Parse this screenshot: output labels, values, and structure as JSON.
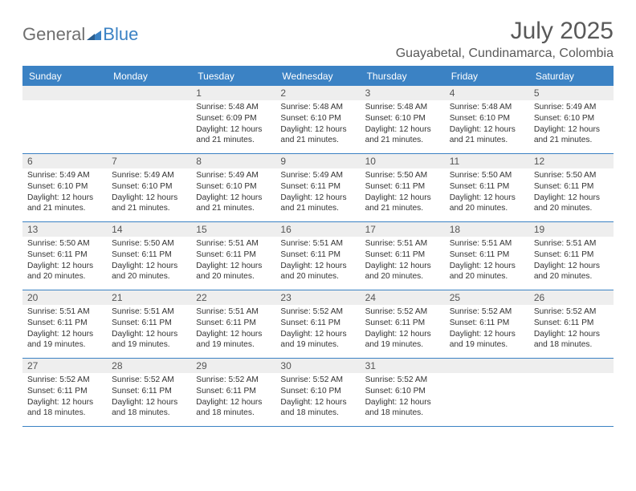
{
  "logo": {
    "part1": "General",
    "part2": "Blue"
  },
  "title": "July 2025",
  "location": "Guayabetal, Cundinamarca, Colombia",
  "colors": {
    "accent": "#3b82c4",
    "header_bg": "#3b82c4",
    "header_text": "#ffffff",
    "daynum_bg": "#eeeeee",
    "text": "#333333",
    "title_text": "#595959",
    "logo_gray": "#6f6f6f"
  },
  "dayNames": [
    "Sunday",
    "Monday",
    "Tuesday",
    "Wednesday",
    "Thursday",
    "Friday",
    "Saturday"
  ],
  "weeks": [
    [
      {
        "n": "",
        "empty": true
      },
      {
        "n": "",
        "empty": true
      },
      {
        "n": "1",
        "sunrise": "Sunrise: 5:48 AM",
        "sunset": "Sunset: 6:09 PM",
        "day1": "Daylight: 12 hours",
        "day2": "and 21 minutes."
      },
      {
        "n": "2",
        "sunrise": "Sunrise: 5:48 AM",
        "sunset": "Sunset: 6:10 PM",
        "day1": "Daylight: 12 hours",
        "day2": "and 21 minutes."
      },
      {
        "n": "3",
        "sunrise": "Sunrise: 5:48 AM",
        "sunset": "Sunset: 6:10 PM",
        "day1": "Daylight: 12 hours",
        "day2": "and 21 minutes."
      },
      {
        "n": "4",
        "sunrise": "Sunrise: 5:48 AM",
        "sunset": "Sunset: 6:10 PM",
        "day1": "Daylight: 12 hours",
        "day2": "and 21 minutes."
      },
      {
        "n": "5",
        "sunrise": "Sunrise: 5:49 AM",
        "sunset": "Sunset: 6:10 PM",
        "day1": "Daylight: 12 hours",
        "day2": "and 21 minutes."
      }
    ],
    [
      {
        "n": "6",
        "sunrise": "Sunrise: 5:49 AM",
        "sunset": "Sunset: 6:10 PM",
        "day1": "Daylight: 12 hours",
        "day2": "and 21 minutes."
      },
      {
        "n": "7",
        "sunrise": "Sunrise: 5:49 AM",
        "sunset": "Sunset: 6:10 PM",
        "day1": "Daylight: 12 hours",
        "day2": "and 21 minutes."
      },
      {
        "n": "8",
        "sunrise": "Sunrise: 5:49 AM",
        "sunset": "Sunset: 6:10 PM",
        "day1": "Daylight: 12 hours",
        "day2": "and 21 minutes."
      },
      {
        "n": "9",
        "sunrise": "Sunrise: 5:49 AM",
        "sunset": "Sunset: 6:11 PM",
        "day1": "Daylight: 12 hours",
        "day2": "and 21 minutes."
      },
      {
        "n": "10",
        "sunrise": "Sunrise: 5:50 AM",
        "sunset": "Sunset: 6:11 PM",
        "day1": "Daylight: 12 hours",
        "day2": "and 21 minutes."
      },
      {
        "n": "11",
        "sunrise": "Sunrise: 5:50 AM",
        "sunset": "Sunset: 6:11 PM",
        "day1": "Daylight: 12 hours",
        "day2": "and 20 minutes."
      },
      {
        "n": "12",
        "sunrise": "Sunrise: 5:50 AM",
        "sunset": "Sunset: 6:11 PM",
        "day1": "Daylight: 12 hours",
        "day2": "and 20 minutes."
      }
    ],
    [
      {
        "n": "13",
        "sunrise": "Sunrise: 5:50 AM",
        "sunset": "Sunset: 6:11 PM",
        "day1": "Daylight: 12 hours",
        "day2": "and 20 minutes."
      },
      {
        "n": "14",
        "sunrise": "Sunrise: 5:50 AM",
        "sunset": "Sunset: 6:11 PM",
        "day1": "Daylight: 12 hours",
        "day2": "and 20 minutes."
      },
      {
        "n": "15",
        "sunrise": "Sunrise: 5:51 AM",
        "sunset": "Sunset: 6:11 PM",
        "day1": "Daylight: 12 hours",
        "day2": "and 20 minutes."
      },
      {
        "n": "16",
        "sunrise": "Sunrise: 5:51 AM",
        "sunset": "Sunset: 6:11 PM",
        "day1": "Daylight: 12 hours",
        "day2": "and 20 minutes."
      },
      {
        "n": "17",
        "sunrise": "Sunrise: 5:51 AM",
        "sunset": "Sunset: 6:11 PM",
        "day1": "Daylight: 12 hours",
        "day2": "and 20 minutes."
      },
      {
        "n": "18",
        "sunrise": "Sunrise: 5:51 AM",
        "sunset": "Sunset: 6:11 PM",
        "day1": "Daylight: 12 hours",
        "day2": "and 20 minutes."
      },
      {
        "n": "19",
        "sunrise": "Sunrise: 5:51 AM",
        "sunset": "Sunset: 6:11 PM",
        "day1": "Daylight: 12 hours",
        "day2": "and 20 minutes."
      }
    ],
    [
      {
        "n": "20",
        "sunrise": "Sunrise: 5:51 AM",
        "sunset": "Sunset: 6:11 PM",
        "day1": "Daylight: 12 hours",
        "day2": "and 19 minutes."
      },
      {
        "n": "21",
        "sunrise": "Sunrise: 5:51 AM",
        "sunset": "Sunset: 6:11 PM",
        "day1": "Daylight: 12 hours",
        "day2": "and 19 minutes."
      },
      {
        "n": "22",
        "sunrise": "Sunrise: 5:51 AM",
        "sunset": "Sunset: 6:11 PM",
        "day1": "Daylight: 12 hours",
        "day2": "and 19 minutes."
      },
      {
        "n": "23",
        "sunrise": "Sunrise: 5:52 AM",
        "sunset": "Sunset: 6:11 PM",
        "day1": "Daylight: 12 hours",
        "day2": "and 19 minutes."
      },
      {
        "n": "24",
        "sunrise": "Sunrise: 5:52 AM",
        "sunset": "Sunset: 6:11 PM",
        "day1": "Daylight: 12 hours",
        "day2": "and 19 minutes."
      },
      {
        "n": "25",
        "sunrise": "Sunrise: 5:52 AM",
        "sunset": "Sunset: 6:11 PM",
        "day1": "Daylight: 12 hours",
        "day2": "and 19 minutes."
      },
      {
        "n": "26",
        "sunrise": "Sunrise: 5:52 AM",
        "sunset": "Sunset: 6:11 PM",
        "day1": "Daylight: 12 hours",
        "day2": "and 18 minutes."
      }
    ],
    [
      {
        "n": "27",
        "sunrise": "Sunrise: 5:52 AM",
        "sunset": "Sunset: 6:11 PM",
        "day1": "Daylight: 12 hours",
        "day2": "and 18 minutes."
      },
      {
        "n": "28",
        "sunrise": "Sunrise: 5:52 AM",
        "sunset": "Sunset: 6:11 PM",
        "day1": "Daylight: 12 hours",
        "day2": "and 18 minutes."
      },
      {
        "n": "29",
        "sunrise": "Sunrise: 5:52 AM",
        "sunset": "Sunset: 6:11 PM",
        "day1": "Daylight: 12 hours",
        "day2": "and 18 minutes."
      },
      {
        "n": "30",
        "sunrise": "Sunrise: 5:52 AM",
        "sunset": "Sunset: 6:10 PM",
        "day1": "Daylight: 12 hours",
        "day2": "and 18 minutes."
      },
      {
        "n": "31",
        "sunrise": "Sunrise: 5:52 AM",
        "sunset": "Sunset: 6:10 PM",
        "day1": "Daylight: 12 hours",
        "day2": "and 18 minutes."
      },
      {
        "n": "",
        "empty": true
      },
      {
        "n": "",
        "empty": true
      }
    ]
  ]
}
